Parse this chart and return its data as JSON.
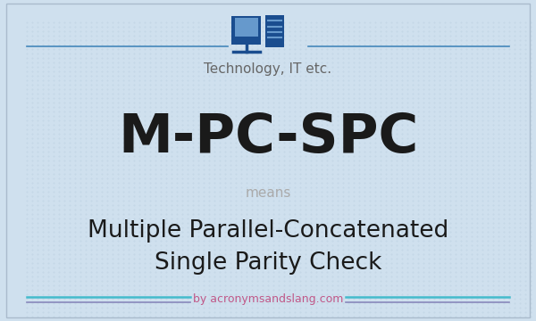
{
  "bg_color": "#cfe0ee",
  "title_text": "M-PC-SPC",
  "title_color": "#1a1a1a",
  "title_fontsize": 44,
  "category_text": "Technology, IT etc.",
  "category_color": "#666666",
  "category_fontsize": 11,
  "means_text": "means",
  "means_color": "#aaaaaa",
  "means_fontsize": 11,
  "definition_line1": "Multiple Parallel-Concatenated",
  "definition_line2": "Single Parity Check",
  "definition_color": "#1a1a1a",
  "definition_fontsize": 19,
  "watermark_text": "by acronymsandslang.com",
  "watermark_color": "#c05888",
  "watermark_fontsize": 9,
  "line_color_top": "#4488bb",
  "line_color_bottom_teal": "#44bbcc",
  "line_color_bottom_purple": "#8888bb",
  "icon_color": "#1a4d8f",
  "icon_screen_color": "#6699cc",
  "dot_color": "#b8cfe0",
  "border_color": "#aabbcc"
}
